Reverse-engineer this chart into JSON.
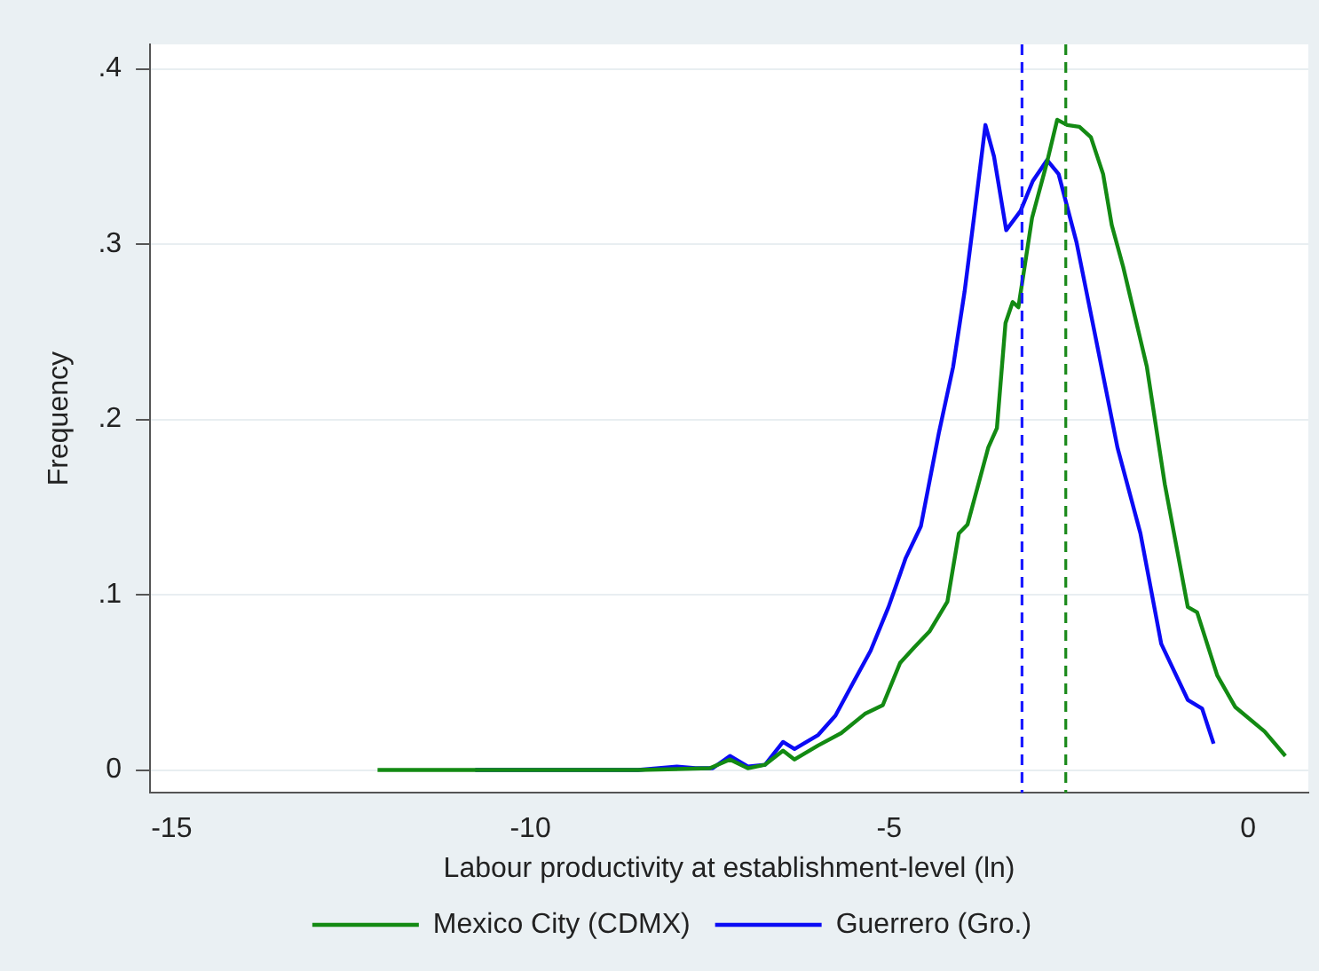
{
  "chart_data": {
    "type": "line",
    "xlabel": "Labour productivity at establishment-level (ln)",
    "ylabel": "Frequency",
    "xlim": [
      -15.3,
      0.84
    ],
    "xticks": [
      -15,
      -10,
      -5,
      0
    ],
    "ylim": [
      -0.013,
      0.414
    ],
    "yticks": [
      {
        "value": 0,
        "label": "0"
      },
      {
        "value": 0.1,
        "label": ".1"
      },
      {
        "value": 0.2,
        "label": ".2"
      },
      {
        "value": 0.3,
        "label": ".3"
      },
      {
        "value": 0.4,
        "label": ".4"
      }
    ],
    "grid": "y",
    "legend": "bottom",
    "marker": "none",
    "line_style": "solid",
    "ref_lines": [
      {
        "axis": "x",
        "value": -3.15,
        "color": "#1a1aff",
        "line_style": "dashed"
      },
      {
        "axis": "x",
        "value": -2.54,
        "color": "#1a8a1a",
        "line_style": "dashed"
      }
    ],
    "series": [
      {
        "name": "Mexico City (CDMX)",
        "color": "#138a13",
        "x": [
          -12.13,
          -10.77,
          -8.5,
          -7.5,
          -7.22,
          -6.97,
          -6.73,
          -6.48,
          -6.32,
          -5.99,
          -5.67,
          -5.34,
          -5.09,
          -4.85,
          -4.65,
          -4.44,
          -4.19,
          -4.03,
          -3.91,
          -3.62,
          -3.5,
          -3.38,
          -3.28,
          -3.2,
          -3.01,
          -2.8,
          -2.66,
          -2.52,
          -2.35,
          -2.19,
          -2.02,
          -1.9,
          -1.74,
          -1.41,
          -1.16,
          -0.84,
          -0.71,
          -0.43,
          -0.18,
          0.23,
          0.52
        ],
        "values": [
          0,
          0,
          0,
          0.001,
          0.006,
          0.001,
          0.003,
          0.011,
          0.006,
          0.014,
          0.021,
          0.032,
          0.037,
          0.061,
          0.07,
          0.079,
          0.096,
          0.135,
          0.14,
          0.184,
          0.195,
          0.255,
          0.267,
          0.264,
          0.315,
          0.347,
          0.371,
          0.368,
          0.367,
          0.361,
          0.34,
          0.311,
          0.287,
          0.23,
          0.163,
          0.093,
          0.09,
          0.054,
          0.036,
          0.022,
          0.008
        ]
      },
      {
        "name": "Guerrero (Gro.)",
        "color": "#0b0bf5",
        "x": [
          -10.77,
          -8.5,
          -7.96,
          -7.7,
          -7.46,
          -7.22,
          -6.97,
          -6.73,
          -6.48,
          -6.32,
          -5.99,
          -5.75,
          -5.5,
          -5.26,
          -5.01,
          -4.77,
          -4.56,
          -4.31,
          -4.11,
          -3.95,
          -3.82,
          -3.66,
          -3.54,
          -3.37,
          -3.17,
          -3.0,
          -2.8,
          -2.64,
          -2.39,
          -2.15,
          -1.82,
          -1.5,
          -1.21,
          -0.84,
          -0.64,
          -0.48
        ],
        "values": [
          0,
          0,
          0.002,
          0.001,
          0.001,
          0.008,
          0.002,
          0.003,
          0.016,
          0.012,
          0.02,
          0.031,
          0.05,
          0.068,
          0.093,
          0.121,
          0.139,
          0.192,
          0.23,
          0.273,
          0.315,
          0.368,
          0.35,
          0.308,
          0.319,
          0.336,
          0.348,
          0.34,
          0.301,
          0.252,
          0.184,
          0.135,
          0.072,
          0.04,
          0.035,
          0.015
        ]
      }
    ]
  }
}
